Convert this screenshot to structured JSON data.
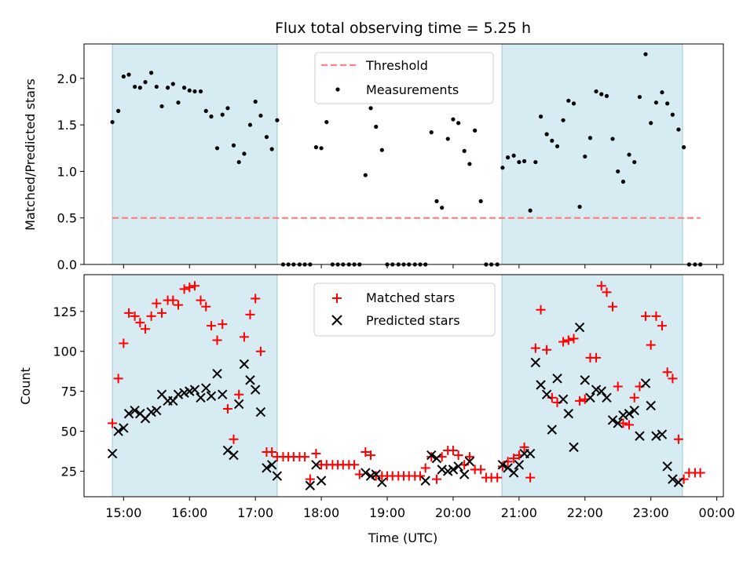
{
  "chart_data": [
    {
      "type": "scatter",
      "title": "Flux total observing time = 5.25 h",
      "xlabel": "",
      "ylabel": "Matched/Predicted stars",
      "xlim": [
        14.4,
        24.1
      ],
      "ylim": [
        0,
        2.37
      ],
      "yticks": [
        0.0,
        0.5,
        1.0,
        1.5,
        2.0
      ],
      "ytick_labels": [
        "0.0",
        "0.5",
        "1.0",
        "1.5",
        "2.0"
      ],
      "shaded_intervals": [
        [
          14.83,
          17.33
        ],
        [
          20.74,
          23.48
        ]
      ],
      "threshold": {
        "name": "Threshold",
        "value": 0.5,
        "x": [
          14.83,
          23.75
        ],
        "color": "#ff8080"
      },
      "legend": [
        "Threshold",
        "Measurements"
      ],
      "legend_position": "upper-center",
      "series": [
        {
          "name": "Measurements",
          "color": "#000000",
          "x": [
            14.83,
            14.92,
            15.0,
            15.08,
            15.17,
            15.25,
            15.33,
            15.42,
            15.5,
            15.58,
            15.67,
            15.75,
            15.83,
            15.92,
            16.0,
            16.08,
            16.17,
            16.25,
            16.33,
            16.42,
            16.5,
            16.58,
            16.67,
            16.75,
            16.83,
            16.92,
            17.0,
            17.08,
            17.17,
            17.25,
            17.33,
            17.42,
            17.5,
            17.58,
            17.67,
            17.75,
            17.83,
            17.92,
            18.0,
            18.08,
            18.17,
            18.25,
            18.33,
            18.42,
            18.5,
            18.58,
            18.67,
            18.75,
            18.83,
            18.92,
            19.0,
            19.08,
            19.17,
            19.25,
            19.33,
            19.42,
            19.5,
            19.58,
            19.67,
            19.75,
            19.83,
            19.92,
            20.0,
            20.08,
            20.17,
            20.25,
            20.33,
            20.42,
            20.5,
            20.58,
            20.67,
            20.75,
            20.83,
            20.92,
            21.0,
            21.08,
            21.17,
            21.25,
            21.33,
            21.42,
            21.5,
            21.58,
            21.67,
            21.75,
            21.83,
            21.92,
            22.0,
            22.08,
            22.17,
            22.25,
            22.33,
            22.42,
            22.5,
            22.58,
            22.67,
            22.75,
            22.83,
            22.92,
            23.0,
            23.08,
            23.17,
            23.25,
            23.33,
            23.42,
            23.5,
            23.58,
            23.67,
            23.75
          ],
          "y": [
            1.53,
            1.65,
            2.02,
            2.04,
            1.91,
            1.9,
            1.96,
            2.06,
            1.91,
            1.7,
            1.9,
            1.94,
            1.74,
            1.9,
            1.87,
            1.86,
            1.86,
            1.65,
            1.59,
            1.25,
            1.61,
            1.68,
            1.28,
            1.1,
            1.19,
            1.5,
            1.75,
            1.6,
            1.37,
            1.24,
            1.55,
            0,
            0,
            0,
            0,
            0,
            0,
            1.26,
            1.25,
            1.53,
            0,
            0,
            0,
            0,
            0,
            0,
            0.96,
            1.68,
            1.48,
            1.23,
            0,
            0,
            0,
            0,
            0,
            0,
            0,
            0,
            1.42,
            0.68,
            0.61,
            1.35,
            1.56,
            1.52,
            1.22,
            1.08,
            1.44,
            0.68,
            0,
            0,
            0,
            1.04,
            1.15,
            1.17,
            1.1,
            1.11,
            0.58,
            1.1,
            1.59,
            1.4,
            1.33,
            1.27,
            1.55,
            1.76,
            1.73,
            0.62,
            1.16,
            1.36,
            1.86,
            1.83,
            1.81,
            1.35,
            1.0,
            0.89,
            1.18,
            1.1,
            1.8,
            2.26,
            1.52,
            1.74,
            1.85,
            1.73,
            1.61,
            1.45,
            1.26,
            0,
            0,
            0
          ]
        }
      ]
    },
    {
      "type": "scatter",
      "title": "",
      "xlabel": "Time (UTC)",
      "ylabel": "Count",
      "xlim": [
        14.4,
        24.1
      ],
      "ylim": [
        9,
        148
      ],
      "yticks": [
        25,
        50,
        75,
        100,
        125
      ],
      "ytick_labels": [
        "25",
        "50",
        "75",
        "100",
        "125"
      ],
      "xticks": [
        15,
        16,
        17,
        18,
        19,
        20,
        21,
        22,
        23,
        24
      ],
      "xtick_labels": [
        "15:00",
        "16:00",
        "17:00",
        "18:00",
        "19:00",
        "20:00",
        "21:00",
        "22:00",
        "23:00",
        "00:00"
      ],
      "shaded_intervals": [
        [
          14.83,
          17.33
        ],
        [
          20.74,
          23.48
        ]
      ],
      "legend": [
        "Matched stars",
        "Predicted stars"
      ],
      "legend_position": "upper-center",
      "x": [
        14.83,
        14.92,
        15.0,
        15.08,
        15.17,
        15.25,
        15.33,
        15.42,
        15.5,
        15.58,
        15.67,
        15.75,
        15.83,
        15.92,
        16.0,
        16.08,
        16.17,
        16.25,
        16.33,
        16.42,
        16.5,
        16.58,
        16.67,
        16.75,
        16.83,
        16.92,
        17.0,
        17.08,
        17.17,
        17.25,
        17.33,
        17.42,
        17.5,
        17.58,
        17.67,
        17.75,
        17.83,
        17.92,
        18.0,
        18.08,
        18.17,
        18.25,
        18.33,
        18.42,
        18.5,
        18.58,
        18.67,
        18.75,
        18.83,
        18.92,
        19.0,
        19.08,
        19.17,
        19.25,
        19.33,
        19.42,
        19.5,
        19.58,
        19.67,
        19.75,
        19.83,
        19.92,
        20.0,
        20.08,
        20.17,
        20.25,
        20.33,
        20.42,
        20.5,
        20.58,
        20.67,
        20.75,
        20.83,
        20.92,
        21.0,
        21.08,
        21.17,
        21.25,
        21.33,
        21.42,
        21.5,
        21.58,
        21.67,
        21.75,
        21.83,
        21.92,
        22.0,
        22.08,
        22.17,
        22.25,
        22.33,
        22.42,
        22.5,
        22.58,
        22.67,
        22.75,
        22.83,
        22.92,
        23.0,
        23.08,
        23.17,
        23.25,
        23.33,
        23.42,
        23.5,
        23.58,
        23.67,
        23.75
      ],
      "series": [
        {
          "name": "Matched stars",
          "color": "#ff0000",
          "marker": "plus",
          "values": [
            55,
            83,
            105,
            124,
            122,
            118,
            114,
            122,
            130,
            124,
            132,
            132,
            129,
            139,
            140,
            141,
            132,
            128,
            116,
            107,
            117,
            64,
            45,
            73,
            109,
            123,
            133,
            100,
            37,
            37,
            34,
            34,
            34,
            34,
            34,
            34,
            20,
            36,
            29,
            29,
            29,
            29,
            29,
            29,
            29,
            23,
            37,
            35,
            22,
            22,
            22,
            22,
            22,
            22,
            22,
            22,
            22,
            27,
            34,
            20,
            34,
            38,
            38,
            35,
            29,
            34,
            26,
            26,
            21,
            21,
            21,
            28,
            31,
            33,
            35,
            40,
            21,
            102,
            126,
            101,
            71,
            68,
            106,
            107,
            108,
            69,
            70,
            96,
            96,
            141,
            137,
            128,
            78,
            55,
            54,
            71,
            78,
            122,
            104,
            122,
            116,
            87,
            83,
            45,
            20,
            24,
            24,
            24
          ]
        },
        {
          "name": "Predicted stars",
          "color": "#000000",
          "marker": "x",
          "values": [
            36,
            50,
            52,
            61,
            63,
            61,
            58,
            62,
            63,
            73,
            69,
            69,
            73,
            74,
            75,
            76,
            71,
            77,
            72,
            86,
            73,
            38,
            35,
            67,
            92,
            82,
            76,
            62,
            27,
            29,
            22,
            null,
            null,
            null,
            null,
            null,
            16,
            29,
            19,
            null,
            null,
            null,
            null,
            null,
            null,
            null,
            24,
            22,
            23,
            18,
            null,
            null,
            null,
            null,
            null,
            null,
            null,
            19,
            35,
            33,
            26,
            25,
            26,
            28,
            23,
            31,
            null,
            null,
            null,
            null,
            null,
            29,
            27,
            24,
            29,
            36,
            36,
            93,
            79,
            73,
            51,
            83,
            70,
            61,
            40,
            115,
            82,
            71,
            76,
            75,
            71,
            57,
            55,
            60,
            61,
            63,
            47,
            80,
            66,
            47,
            48,
            28,
            20,
            18,
            null,
            null,
            null,
            null
          ]
        }
      ]
    }
  ]
}
